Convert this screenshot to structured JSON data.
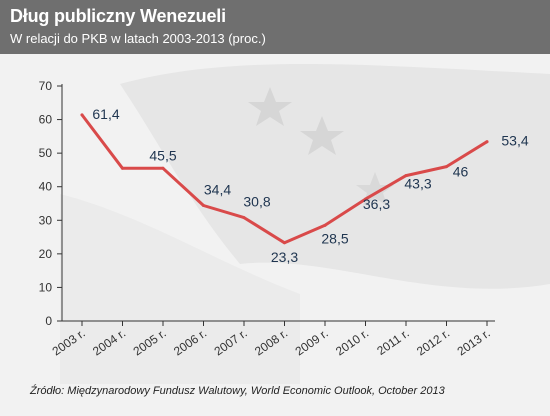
{
  "header": {
    "title": "Dług publiczny Wenezueli",
    "subtitle": "W relacji do PKB w latach 2003-2013 (proc.)"
  },
  "footer": {
    "source": "Źródło: Międzynarodowy Fundusz Walutowy, World Economic Outlook, October 2013"
  },
  "colors": {
    "header_bg": "#6f6f6f",
    "line": "#d94a4a",
    "label": "#1f3550",
    "axis": "#333333"
  },
  "chart_data": {
    "type": "line",
    "categories": [
      "2003 r.",
      "2004 r.",
      "2005 r.",
      "2006 r.",
      "2007 r.",
      "2008 r.",
      "2009 r.",
      "2010 r.",
      "2011 r.",
      "2012 r.",
      "2013 r."
    ],
    "series": [
      {
        "values": [
          61.4,
          45.5,
          45.5,
          34.4,
          30.8,
          23.3,
          28.5,
          36.3,
          43.3,
          46,
          53.4
        ]
      }
    ],
    "data_labels": [
      "61,4",
      "",
      "45,5",
      "34,4",
      "30,8",
      "23,3",
      "28,5",
      "36,3",
      "43,3",
      "46",
      "53,4"
    ],
    "yticks": [
      0,
      10,
      20,
      30,
      40,
      50,
      60,
      70
    ],
    "ylim": [
      0,
      70
    ],
    "grid": false,
    "xlabel": "",
    "ylabel": ""
  }
}
